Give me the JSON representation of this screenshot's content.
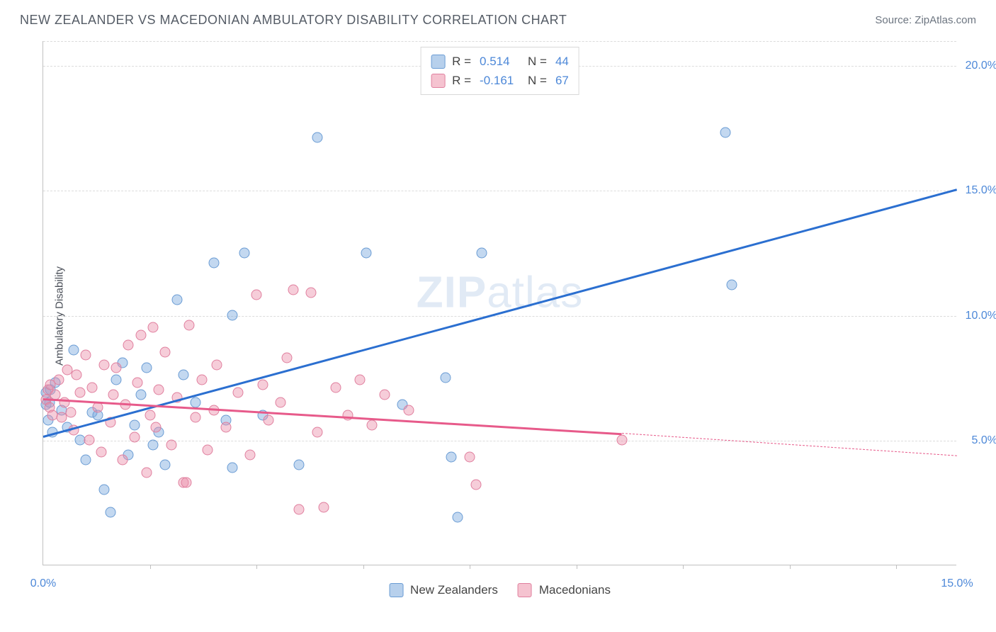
{
  "header": {
    "title": "NEW ZEALANDER VS MACEDONIAN AMBULATORY DISABILITY CORRELATION CHART",
    "source_prefix": "Source: ",
    "source_name": "ZipAtlas.com"
  },
  "chart": {
    "type": "scatter",
    "ylabel": "Ambulatory Disability",
    "background_color": "#ffffff",
    "grid_color": "#dcdcdc",
    "axis_color": "#c0c0c0",
    "text_color": "#4a4f58",
    "xlim": [
      0,
      15
    ],
    "ylim": [
      0,
      21
    ],
    "yticks": [
      {
        "v": 5,
        "label": "5.0%"
      },
      {
        "v": 10,
        "label": "10.0%"
      },
      {
        "v": 15,
        "label": "15.0%"
      },
      {
        "v": 20,
        "label": "20.0%"
      }
    ],
    "xtick_positions": [
      1.75,
      3.5,
      5.25,
      7.0,
      8.75,
      10.5,
      12.25,
      14.0
    ],
    "xtick_labels": [
      {
        "v": 0,
        "label": "0.0%"
      },
      {
        "v": 15,
        "label": "15.0%"
      }
    ],
    "ytick_color": "#4d88d8",
    "xtick_color": "#4d88d8",
    "point_radius": 7.5,
    "series": [
      {
        "name": "New Zealanders",
        "fill": "rgba(123,169,221,0.45)",
        "stroke": "#6a9cd4",
        "points": [
          [
            0.05,
            6.4
          ],
          [
            0.05,
            6.9
          ],
          [
            0.08,
            5.8
          ],
          [
            0.1,
            6.5
          ],
          [
            0.12,
            7.0
          ],
          [
            0.15,
            5.3
          ],
          [
            0.5,
            8.6
          ],
          [
            0.6,
            5.0
          ],
          [
            0.7,
            4.2
          ],
          [
            0.8,
            6.1
          ],
          [
            1.0,
            3.0
          ],
          [
            1.1,
            2.1
          ],
          [
            1.2,
            7.4
          ],
          [
            1.3,
            8.1
          ],
          [
            1.5,
            5.6
          ],
          [
            1.6,
            6.8
          ],
          [
            1.8,
            4.8
          ],
          [
            1.9,
            5.3
          ],
          [
            2.0,
            4.0
          ],
          [
            2.2,
            10.6
          ],
          [
            2.3,
            7.6
          ],
          [
            2.8,
            12.1
          ],
          [
            3.0,
            5.8
          ],
          [
            3.1,
            10.0
          ],
          [
            3.1,
            3.9
          ],
          [
            3.3,
            12.5
          ],
          [
            3.6,
            6.0
          ],
          [
            4.2,
            4.0
          ],
          [
            4.5,
            17.1
          ],
          [
            5.3,
            12.5
          ],
          [
            5.9,
            6.4
          ],
          [
            6.6,
            7.5
          ],
          [
            6.7,
            4.3
          ],
          [
            6.8,
            1.9
          ],
          [
            7.2,
            12.5
          ],
          [
            11.2,
            17.3
          ],
          [
            11.3,
            11.2
          ],
          [
            0.3,
            6.2
          ],
          [
            0.4,
            5.5
          ],
          [
            0.9,
            6.0
          ],
          [
            1.4,
            4.4
          ],
          [
            2.5,
            6.5
          ],
          [
            1.7,
            7.9
          ],
          [
            0.2,
            7.3
          ]
        ],
        "trend": {
          "x1": 0,
          "y1": 5.2,
          "x2": 15,
          "y2": 15.1,
          "color": "#2b6fd0"
        }
      },
      {
        "name": "Macedonians",
        "fill": "rgba(236,145,170,0.45)",
        "stroke": "#e07f9e",
        "points": [
          [
            0.05,
            6.6
          ],
          [
            0.08,
            7.0
          ],
          [
            0.1,
            6.3
          ],
          [
            0.12,
            7.2
          ],
          [
            0.15,
            6.0
          ],
          [
            0.2,
            6.8
          ],
          [
            0.25,
            7.4
          ],
          [
            0.3,
            5.9
          ],
          [
            0.35,
            6.5
          ],
          [
            0.4,
            7.8
          ],
          [
            0.45,
            6.1
          ],
          [
            0.5,
            5.4
          ],
          [
            0.55,
            7.6
          ],
          [
            0.6,
            6.9
          ],
          [
            0.7,
            8.4
          ],
          [
            0.75,
            5.0
          ],
          [
            0.8,
            7.1
          ],
          [
            0.9,
            6.3
          ],
          [
            0.95,
            4.5
          ],
          [
            1.0,
            8.0
          ],
          [
            1.1,
            5.7
          ],
          [
            1.15,
            6.8
          ],
          [
            1.2,
            7.9
          ],
          [
            1.3,
            4.2
          ],
          [
            1.35,
            6.4
          ],
          [
            1.4,
            8.8
          ],
          [
            1.5,
            5.1
          ],
          [
            1.55,
            7.3
          ],
          [
            1.6,
            9.2
          ],
          [
            1.7,
            3.7
          ],
          [
            1.75,
            6.0
          ],
          [
            1.8,
            9.5
          ],
          [
            1.85,
            5.5
          ],
          [
            1.9,
            7.0
          ],
          [
            2.0,
            8.5
          ],
          [
            2.1,
            4.8
          ],
          [
            2.2,
            6.7
          ],
          [
            2.3,
            3.3
          ],
          [
            2.35,
            3.3
          ],
          [
            2.4,
            9.6
          ],
          [
            2.5,
            5.9
          ],
          [
            2.6,
            7.4
          ],
          [
            2.7,
            4.6
          ],
          [
            2.8,
            6.2
          ],
          [
            2.85,
            8.0
          ],
          [
            3.0,
            5.5
          ],
          [
            3.2,
            6.9
          ],
          [
            3.4,
            4.4
          ],
          [
            3.5,
            10.8
          ],
          [
            3.6,
            7.2
          ],
          [
            3.7,
            5.8
          ],
          [
            3.9,
            6.5
          ],
          [
            4.0,
            8.3
          ],
          [
            4.1,
            11.0
          ],
          [
            4.2,
            2.2
          ],
          [
            4.4,
            10.9
          ],
          [
            4.5,
            5.3
          ],
          [
            4.6,
            2.3
          ],
          [
            4.8,
            7.1
          ],
          [
            5.0,
            6.0
          ],
          [
            5.2,
            7.4
          ],
          [
            5.4,
            5.6
          ],
          [
            5.6,
            6.8
          ],
          [
            6.0,
            6.2
          ],
          [
            7.0,
            4.3
          ],
          [
            7.1,
            3.2
          ],
          [
            9.5,
            5.0
          ]
        ],
        "trend": {
          "x1": 0,
          "y1": 6.7,
          "x2": 9.5,
          "y2": 5.3,
          "extend_x2": 15,
          "extend_y2": 4.4,
          "color": "#e75a8a"
        }
      }
    ],
    "legend_top": [
      {
        "swatch_fill": "rgba(123,169,221,0.55)",
        "swatch_stroke": "#6a9cd4",
        "r_label": "R =",
        "r_val": "0.514",
        "n_label": "N =",
        "n_val": "44"
      },
      {
        "swatch_fill": "rgba(236,145,170,0.55)",
        "swatch_stroke": "#e07f9e",
        "r_label": "R =",
        "r_val": "-0.161",
        "n_label": "N =",
        "n_val": "67"
      }
    ],
    "legend_bottom": [
      {
        "swatch_fill": "rgba(123,169,221,0.55)",
        "swatch_stroke": "#6a9cd4",
        "label": "New Zealanders"
      },
      {
        "swatch_fill": "rgba(236,145,170,0.55)",
        "swatch_stroke": "#e07f9e",
        "label": "Macedonians"
      }
    ],
    "stat_value_color": "#4d88d8",
    "watermark": {
      "zip": "ZIP",
      "atlas": "atlas",
      "color": "rgba(120,160,210,0.22)"
    }
  }
}
